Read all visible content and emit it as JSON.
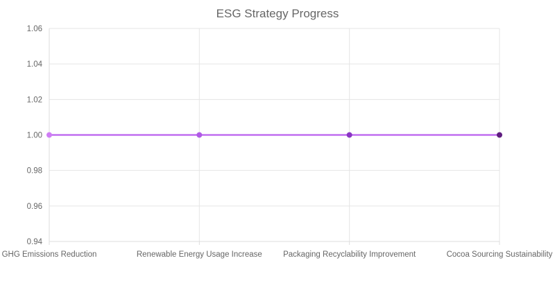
{
  "chart_data": {
    "type": "line",
    "title": "ESG Strategy Progress",
    "categories": [
      "GHG Emissions Reduction",
      "Renewable Energy Usage Increase",
      "Packaging Recyclability Improvement",
      "Cocoa Sourcing Sustainability"
    ],
    "series": [
      {
        "values": [
          1.0,
          1.0,
          1.0,
          1.0
        ],
        "line_color": "#c06ef0",
        "point_colors": [
          "#cf7df5",
          "#b05ae6",
          "#8a35c4",
          "#5f1d80"
        ]
      }
    ],
    "ylim": [
      0.94,
      1.06
    ],
    "yticks": [
      "0.94",
      "0.96",
      "0.98",
      "1.00",
      "1.02",
      "1.04",
      "1.06"
    ],
    "grid": true,
    "legend": "none"
  }
}
